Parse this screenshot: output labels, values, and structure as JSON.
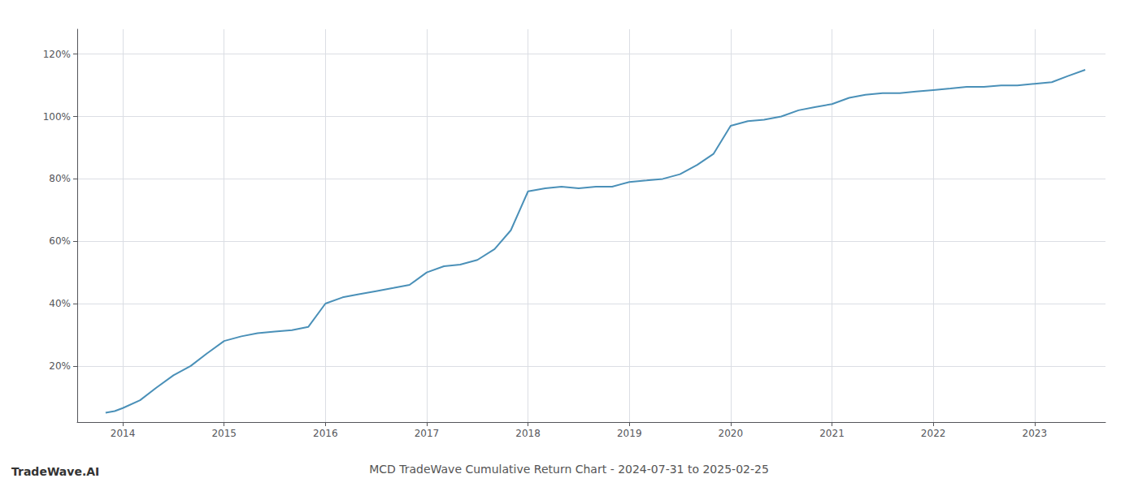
{
  "chart_data": {
    "type": "line",
    "title": "MCD TradeWave Cumulative Return Chart - 2024-07-31 to 2025-02-25",
    "annotations": [
      "TradeWave.AI"
    ],
    "x": [
      2013.83,
      2013.92,
      2014.0,
      2014.17,
      2014.33,
      2014.5,
      2014.67,
      2014.83,
      2015.0,
      2015.17,
      2015.33,
      2015.5,
      2015.67,
      2015.83,
      2016.0,
      2016.17,
      2016.33,
      2016.5,
      2016.67,
      2016.83,
      2017.0,
      2017.17,
      2017.33,
      2017.5,
      2017.67,
      2017.83,
      2018.0,
      2018.17,
      2018.33,
      2018.5,
      2018.67,
      2018.83,
      2019.0,
      2019.17,
      2019.33,
      2019.5,
      2019.67,
      2019.83,
      2020.0,
      2020.17,
      2020.33,
      2020.5,
      2020.67,
      2020.83,
      2021.0,
      2021.17,
      2021.33,
      2021.5,
      2021.67,
      2021.83,
      2022.0,
      2022.17,
      2022.33,
      2022.5,
      2022.67,
      2022.83,
      2023.0,
      2023.17,
      2023.33,
      2023.5
    ],
    "values": [
      0.05,
      0.055,
      0.065,
      0.09,
      0.13,
      0.17,
      0.2,
      0.24,
      0.28,
      0.295,
      0.305,
      0.31,
      0.315,
      0.325,
      0.4,
      0.42,
      0.43,
      0.44,
      0.45,
      0.46,
      0.5,
      0.52,
      0.525,
      0.54,
      0.575,
      0.635,
      0.76,
      0.77,
      0.775,
      0.77,
      0.775,
      0.775,
      0.79,
      0.795,
      0.8,
      0.815,
      0.845,
      0.88,
      0.97,
      0.985,
      0.99,
      1.0,
      1.02,
      1.03,
      1.04,
      1.06,
      1.07,
      1.075,
      1.075,
      1.08,
      1.085,
      1.09,
      1.095,
      1.095,
      1.1,
      1.1,
      1.105,
      1.11,
      1.13,
      1.15
    ],
    "color": "#4a90b8",
    "xlim": [
      2013.55,
      2023.7
    ],
    "xticks": [
      2014,
      2015,
      2016,
      2017,
      2018,
      2019,
      2020,
      2021,
      2022,
      2023
    ],
    "ylim": [
      0.02,
      1.28
    ],
    "yticks": [
      {
        "value": 0.2,
        "label": "20%"
      },
      {
        "value": 0.4,
        "label": "40%"
      },
      {
        "value": 0.6,
        "label": "60%"
      },
      {
        "value": 0.8,
        "label": "80%"
      },
      {
        "value": 1.0,
        "label": "100%"
      },
      {
        "value": 1.2,
        "label": "120%"
      }
    ],
    "grid": true
  }
}
